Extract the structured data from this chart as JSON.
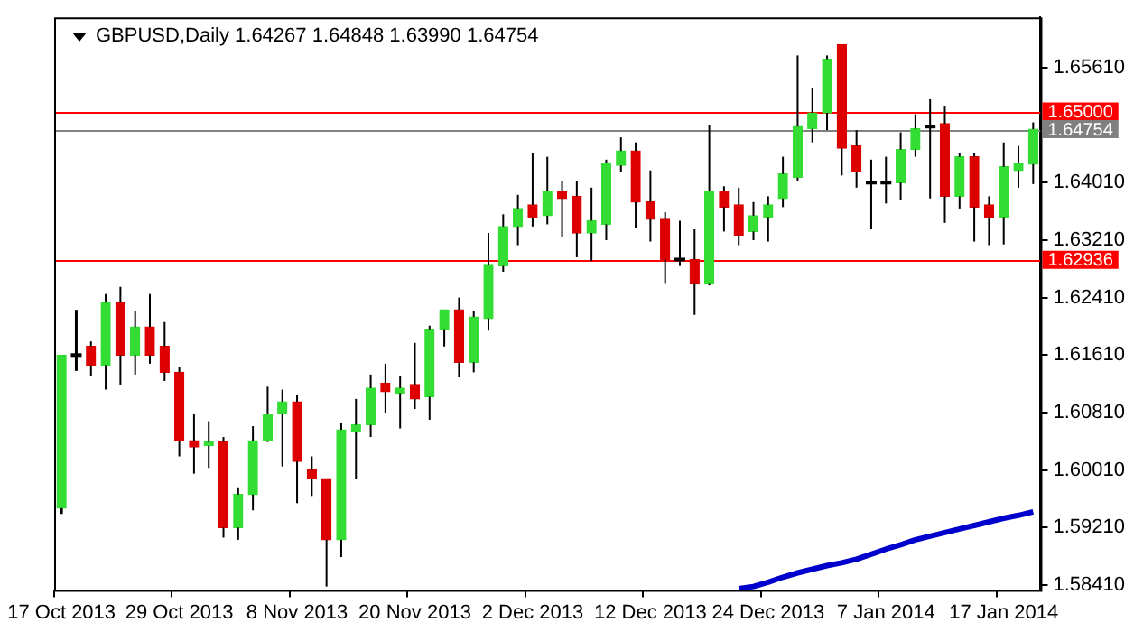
{
  "chart_data": {
    "type": "candlestick",
    "title": "GBPUSD,Daily 1.64267 1.64848 1.63990 1.64754",
    "categories": [
      "17 Oct 2013",
      null,
      null,
      null,
      null,
      null,
      null,
      null,
      "29 Oct 2013",
      null,
      null,
      null,
      null,
      null,
      null,
      null,
      "8 Nov 2013",
      null,
      null,
      null,
      null,
      null,
      null,
      null,
      "20 Nov 2013",
      null,
      null,
      null,
      null,
      null,
      null,
      null,
      "2 Dec 2013",
      null,
      null,
      null,
      null,
      null,
      null,
      null,
      "12 Dec 2013",
      null,
      null,
      null,
      null,
      null,
      null,
      null,
      "24 Dec 2013",
      null,
      null,
      null,
      null,
      null,
      null,
      null,
      "7 Jan 2014",
      null,
      null,
      null,
      null,
      null,
      null,
      null,
      "17 Jan 2014",
      null,
      null
    ],
    "ohlc": [
      [
        1.5948,
        1.6161,
        1.594,
        1.6161
      ],
      [
        1.6161,
        1.6224,
        1.6139,
        1.6161
      ],
      [
        1.6173,
        1.618,
        1.6132,
        1.6147
      ],
      [
        1.6147,
        1.6246,
        1.6113,
        1.6234
      ],
      [
        1.6234,
        1.6256,
        1.612,
        1.6161
      ],
      [
        1.6161,
        1.6222,
        1.6134,
        1.62
      ],
      [
        1.62,
        1.6246,
        1.6149,
        1.6161
      ],
      [
        1.6173,
        1.6207,
        1.6125,
        1.6137
      ],
      [
        1.6137,
        1.6144,
        1.602,
        1.6042
      ],
      [
        1.6042,
        1.6079,
        1.5996,
        1.6033
      ],
      [
        1.6035,
        1.6069,
        1.6004,
        1.604
      ],
      [
        1.604,
        1.6047,
        1.5907,
        1.5921
      ],
      [
        1.5921,
        1.5977,
        1.5904,
        1.5967
      ],
      [
        1.5967,
        1.6062,
        1.5945,
        1.6042
      ],
      [
        1.6042,
        1.6117,
        1.604,
        1.6079
      ],
      [
        1.6079,
        1.6113,
        1.6006,
        1.6096
      ],
      [
        1.6096,
        1.6105,
        1.5955,
        1.6013
      ],
      [
        1.6001,
        1.602,
        1.5965,
        1.5989
      ],
      [
        1.5989,
        1.5989,
        1.5839,
        1.5904
      ],
      [
        1.5904,
        1.6067,
        1.588,
        1.6057
      ],
      [
        1.6054,
        1.61,
        1.5989,
        1.6064
      ],
      [
        1.6064,
        1.6134,
        1.6047,
        1.6115
      ],
      [
        1.6122,
        1.6149,
        1.6081,
        1.611
      ],
      [
        1.6108,
        1.6132,
        1.6059,
        1.6115
      ],
      [
        1.612,
        1.6178,
        1.6086,
        1.61
      ],
      [
        1.6103,
        1.6202,
        1.6071,
        1.6197
      ],
      [
        1.6197,
        1.6224,
        1.6173,
        1.6224
      ],
      [
        1.6224,
        1.6241,
        1.613,
        1.6151
      ],
      [
        1.6151,
        1.6222,
        1.6137,
        1.6214
      ],
      [
        1.6212,
        1.6331,
        1.6195,
        1.6287
      ],
      [
        1.6285,
        1.6357,
        1.6277,
        1.634
      ],
      [
        1.634,
        1.6384,
        1.6314,
        1.6365
      ],
      [
        1.637,
        1.6442,
        1.634,
        1.6353
      ],
      [
        1.6355,
        1.6437,
        1.6343,
        1.6389
      ],
      [
        1.6389,
        1.6403,
        1.6326,
        1.6379
      ],
      [
        1.6382,
        1.6403,
        1.6297,
        1.6331
      ],
      [
        1.6331,
        1.6394,
        1.6292,
        1.6348
      ],
      [
        1.6343,
        1.6433,
        1.6321,
        1.6428
      ],
      [
        1.6425,
        1.6464,
        1.6416,
        1.6445
      ],
      [
        1.6445,
        1.6457,
        1.6338,
        1.6374
      ],
      [
        1.6374,
        1.6418,
        1.6319,
        1.635
      ],
      [
        1.635,
        1.636,
        1.626,
        1.6294
      ],
      [
        1.6294,
        1.6348,
        1.6285,
        1.6294
      ],
      [
        1.6294,
        1.6336,
        1.6217,
        1.626
      ],
      [
        1.626,
        1.6481,
        1.6258,
        1.6389
      ],
      [
        1.6389,
        1.6396,
        1.6333,
        1.6367
      ],
      [
        1.637,
        1.6394,
        1.6314,
        1.6328
      ],
      [
        1.6333,
        1.6374,
        1.6321,
        1.6355
      ],
      [
        1.6353,
        1.6382,
        1.6319,
        1.637
      ],
      [
        1.6379,
        1.6437,
        1.6367,
        1.6413
      ],
      [
        1.6408,
        1.6578,
        1.6403,
        1.6479
      ],
      [
        1.6476,
        1.6532,
        1.6457,
        1.6498
      ],
      [
        1.6498,
        1.6578,
        1.6474,
        1.6573
      ],
      [
        1.6593,
        1.6593,
        1.6411,
        1.6449
      ],
      [
        1.6452,
        1.6474,
        1.6394,
        1.6416
      ],
      [
        1.6401,
        1.6433,
        1.6336,
        1.6401
      ],
      [
        1.6401,
        1.6437,
        1.6372,
        1.6401
      ],
      [
        1.6401,
        1.6471,
        1.6377,
        1.6447
      ],
      [
        1.6447,
        1.6496,
        1.6437,
        1.6476
      ],
      [
        1.6479,
        1.6517,
        1.6379,
        1.6479
      ],
      [
        1.6483,
        1.6508,
        1.6345,
        1.6382
      ],
      [
        1.6382,
        1.6442,
        1.6365,
        1.6437
      ],
      [
        1.6437,
        1.6442,
        1.6319,
        1.6367
      ],
      [
        1.637,
        1.6382,
        1.6314,
        1.6353
      ],
      [
        1.6353,
        1.6457,
        1.6315,
        1.6423
      ],
      [
        1.6418,
        1.6452,
        1.6394,
        1.6428
      ],
      [
        1.64267,
        1.64848,
        1.6399,
        1.64754
      ]
    ],
    "colors": [
      "#33dd33",
      "#000000",
      "#dd0000",
      "#33dd33",
      "#dd0000",
      "#33dd33",
      "#dd0000",
      "#dd0000",
      "#dd0000",
      "#dd0000",
      "#33dd33",
      "#dd0000",
      "#33dd33",
      "#33dd33",
      "#33dd33",
      "#33dd33",
      "#dd0000",
      "#dd0000",
      "#dd0000",
      "#33dd33",
      "#33dd33",
      "#33dd33",
      "#dd0000",
      "#33dd33",
      "#dd0000",
      "#33dd33",
      "#33dd33",
      "#dd0000",
      "#33dd33",
      "#33dd33",
      "#33dd33",
      "#33dd33",
      "#dd0000",
      "#33dd33",
      "#dd0000",
      "#dd0000",
      "#33dd33",
      "#33dd33",
      "#33dd33",
      "#dd0000",
      "#dd0000",
      "#dd0000",
      "#000000",
      "#dd0000",
      "#33dd33",
      "#dd0000",
      "#dd0000",
      "#33dd33",
      "#33dd33",
      "#33dd33",
      "#33dd33",
      "#33dd33",
      "#33dd33",
      "#dd0000",
      "#dd0000",
      "#000000",
      "#000000",
      "#33dd33",
      "#33dd33",
      "#000000",
      "#dd0000",
      "#33dd33",
      "#dd0000",
      "#dd0000",
      "#33dd33",
      "#33dd33",
      "#33dd33"
    ],
    "series": [
      {
        "type": "line",
        "color": "#0000cc",
        "values": [
          null,
          null,
          null,
          null,
          null,
          null,
          null,
          null,
          null,
          null,
          null,
          null,
          null,
          null,
          null,
          null,
          null,
          null,
          null,
          null,
          null,
          null,
          null,
          null,
          null,
          null,
          null,
          null,
          null,
          null,
          null,
          null,
          null,
          null,
          null,
          null,
          null,
          null,
          null,
          null,
          null,
          null,
          null,
          null,
          null,
          null,
          1.5836,
          1.5839,
          1.5845,
          1.5852,
          1.5858,
          1.5863,
          1.5868,
          1.5872,
          1.5877,
          1.5884,
          1.5891,
          1.5897,
          1.5904,
          1.5909,
          1.5914,
          1.5919,
          1.5924,
          1.5929,
          1.5934,
          1.5938,
          1.5943
        ]
      }
    ],
    "ylim": [
      1.5834,
      1.6631
    ],
    "yticks": [
      {
        "value": 1.6561,
        "label": "1.65610"
      },
      {
        "value": 1.6401,
        "label": "1.64010"
      },
      {
        "value": 1.6321,
        "label": "1.63210"
      },
      {
        "value": 1.6241,
        "label": "1.62410"
      },
      {
        "value": 1.6161,
        "label": "1.61610"
      },
      {
        "value": 1.6081,
        "label": "1.60810"
      },
      {
        "value": 1.6001,
        "label": "1.60010"
      },
      {
        "value": 1.5921,
        "label": "1.59210"
      },
      {
        "value": 1.5841,
        "label": "1.58410"
      }
    ],
    "ref_lines": [
      {
        "axis": "y",
        "value": 1.65,
        "label": "1.65000",
        "color": "#ff0000"
      },
      {
        "axis": "y",
        "value": 1.64754,
        "label": "1.64754",
        "color": "#808080"
      },
      {
        "axis": "y",
        "value": 1.62936,
        "label": "1.62936",
        "color": "#ff0000"
      }
    ],
    "grid": false,
    "legend": false
  }
}
